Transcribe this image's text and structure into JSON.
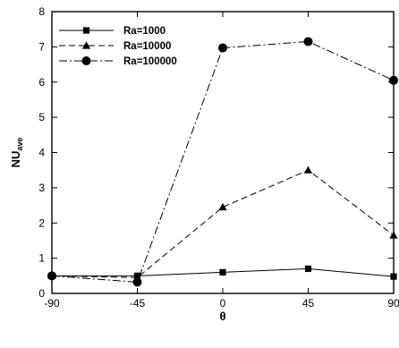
{
  "chart_data": {
    "type": "line",
    "x": [
      -90,
      -45,
      0,
      45,
      90
    ],
    "series": [
      {
        "name": "Ra=1000",
        "values": [
          0.5,
          0.5,
          0.6,
          0.7,
          0.48
        ],
        "marker": "square",
        "dash": "solid"
      },
      {
        "name": "Ra=10000",
        "values": [
          0.5,
          0.45,
          2.45,
          3.5,
          1.65
        ],
        "marker": "triangle",
        "dash": "dashed"
      },
      {
        "name": "Ra=100000",
        "values": [
          0.5,
          0.32,
          6.97,
          7.15,
          6.05
        ],
        "marker": "circle",
        "dash": "dashdot"
      }
    ],
    "xticks": [
      -90,
      -45,
      0,
      45,
      90
    ],
    "yticks": [
      0,
      1,
      2,
      3,
      4,
      5,
      6,
      7,
      8
    ],
    "xlim": [
      -90,
      90
    ],
    "ylim": [
      0,
      8
    ],
    "xlabel": "θ",
    "ylabel": {
      "main": "NU",
      "sub": "ave"
    },
    "legend_position": "top-left",
    "grid": false,
    "colors": {
      "line": "#000000",
      "background": "#ffffff"
    }
  }
}
